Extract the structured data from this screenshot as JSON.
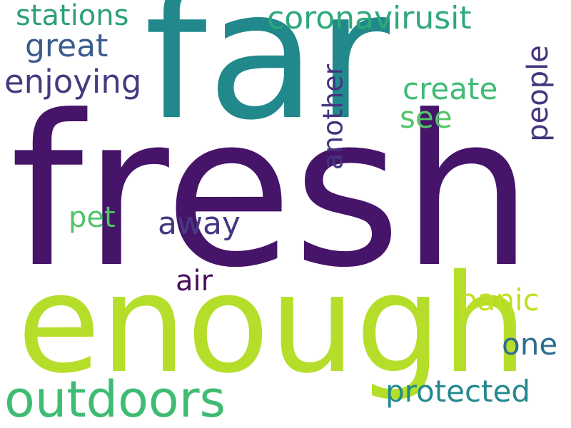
{
  "words": {
    "far": {
      "text": "far",
      "color": "#21898c"
    },
    "fresh": {
      "text": "fresh",
      "color": "#461468"
    },
    "enough": {
      "text": "enough",
      "color": "#b5de2b"
    },
    "outdoors": {
      "text": "outdoors",
      "color": "#3fbc73"
    },
    "stations": {
      "text": "stations",
      "color": "#2da078"
    },
    "great": {
      "text": "great",
      "color": "#3b5b8c"
    },
    "enjoying": {
      "text": "enjoying",
      "color": "#463a80"
    },
    "coronavirusit": {
      "text": "coronavirusit",
      "color": "#2fa87a"
    },
    "create": {
      "text": "create",
      "color": "#3ebc74"
    },
    "see": {
      "text": "see",
      "color": "#52c569"
    },
    "another": {
      "text": "another",
      "color": "#463480"
    },
    "people": {
      "text": "people",
      "color": "#46337e"
    },
    "pet": {
      "text": "pet",
      "color": "#4fc46a"
    },
    "away": {
      "text": "away",
      "color": "#453882"
    },
    "air": {
      "text": "air",
      "color": "#4a0f5e"
    },
    "panic": {
      "text": "panic",
      "color": "#c2df23"
    },
    "one": {
      "text": "one",
      "color": "#2e6e8e"
    },
    "protected": {
      "text": "protected",
      "color": "#23898e"
    }
  }
}
